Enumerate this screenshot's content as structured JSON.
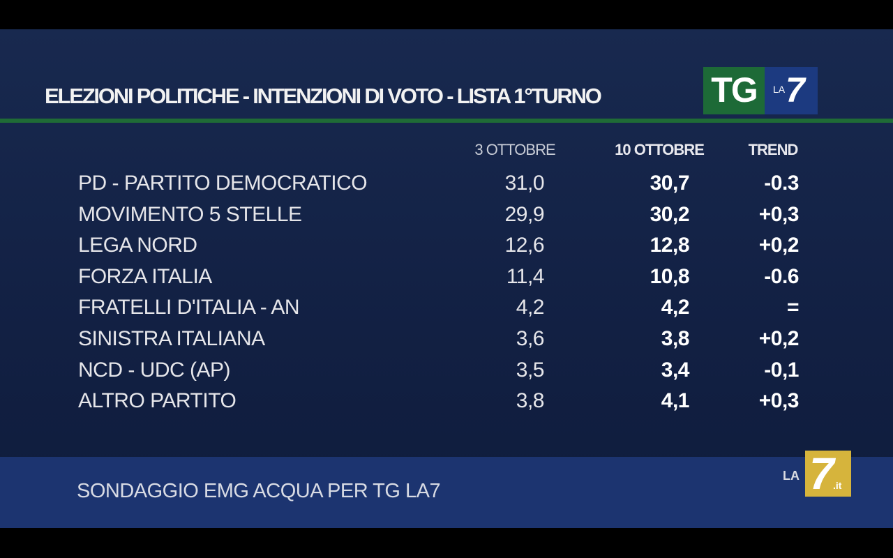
{
  "header": {
    "title": "ELEZIONI POLITICHE - INTENZIONI DI VOTO - LISTA 1°TURNO"
  },
  "logo_top": {
    "tg": "TG",
    "la": "LA",
    "seven": "7"
  },
  "table": {
    "columns": [
      "3 OTTOBRE",
      "10 OTTOBRE",
      "TREND"
    ],
    "rows": [
      [
        "PD - PARTITO DEMOCRATICO",
        "31,0",
        "30,7",
        "-0.3"
      ],
      [
        "MOVIMENTO 5 STELLE",
        "29,9",
        "30,2",
        "+0,3"
      ],
      [
        "LEGA NORD",
        "12,6",
        "12,8",
        "+0,2"
      ],
      [
        "FORZA ITALIA",
        "11,4",
        "10,8",
        "-0.6"
      ],
      [
        "FRATELLI D'ITALIA - AN",
        "4,2",
        "4,2",
        "="
      ],
      [
        "SINISTRA ITALIANA",
        "3,6",
        "3,8",
        "+0,2"
      ],
      [
        "NCD - UDC (AP)",
        "3,5",
        "3,4",
        "-0,1"
      ],
      [
        "ALTRO PARTITO",
        "3,8",
        "4,1",
        "+0,3"
      ]
    ]
  },
  "footer": {
    "source": "SONDAGGIO EMG ACQUA PER TG LA7"
  },
  "logo_bottom": {
    "la": "LA",
    "seven": "7",
    "it": ".it"
  }
}
